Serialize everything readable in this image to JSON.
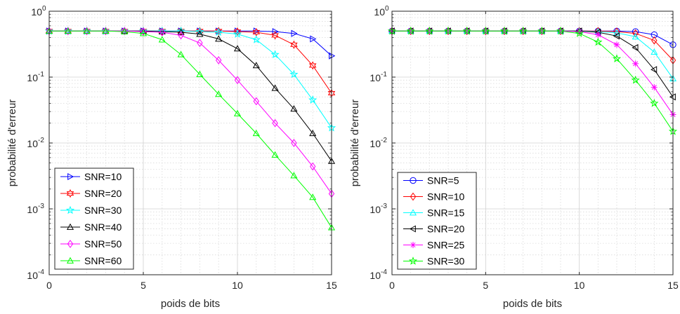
{
  "chart_data": [
    {
      "type": "line",
      "title": "",
      "xlabel": "poids de bits",
      "ylabel": "probabilité d'erreur",
      "xlim": [
        0,
        15
      ],
      "ylim": [
        0.0001,
        1
      ],
      "yscale": "log",
      "xticks": [
        "0",
        "5",
        "10",
        "15"
      ],
      "yticks": [
        {
          "base": "10",
          "exp": "0"
        },
        {
          "base": "10",
          "exp": "-1"
        },
        {
          "base": "10",
          "exp": "-2"
        },
        {
          "base": "10",
          "exp": "-3"
        },
        {
          "base": "10",
          "exp": "-4"
        }
      ],
      "grid": true,
      "legend_position": "bottom-left",
      "x": [
        0,
        1,
        2,
        3,
        4,
        5,
        6,
        7,
        8,
        9,
        10,
        11,
        12,
        13,
        14,
        15
      ],
      "series": [
        {
          "name": "SNR=10",
          "color": "#0000ff",
          "marker": "triangle-right",
          "values": [
            0.5,
            0.5,
            0.5,
            0.5,
            0.5,
            0.5,
            0.5,
            0.5,
            0.5,
            0.5,
            0.5,
            0.5,
            0.49,
            0.46,
            0.38,
            0.21
          ]
        },
        {
          "name": "SNR=20",
          "color": "#ff0000",
          "marker": "hexagram",
          "values": [
            0.5,
            0.5,
            0.5,
            0.5,
            0.5,
            0.5,
            0.5,
            0.5,
            0.5,
            0.5,
            0.49,
            0.48,
            0.43,
            0.31,
            0.15,
            0.057
          ]
        },
        {
          "name": "SNR=30",
          "color": "#00ffff",
          "marker": "pentagram",
          "values": [
            0.5,
            0.5,
            0.5,
            0.5,
            0.5,
            0.5,
            0.5,
            0.5,
            0.49,
            0.48,
            0.45,
            0.37,
            0.22,
            0.11,
            0.045,
            0.017
          ]
        },
        {
          "name": "SNR=40",
          "color": "#000000",
          "marker": "triangle-up",
          "values": [
            0.5,
            0.5,
            0.5,
            0.5,
            0.5,
            0.5,
            0.49,
            0.48,
            0.45,
            0.38,
            0.27,
            0.15,
            0.068,
            0.033,
            0.014,
            0.0053
          ]
        },
        {
          "name": "SNR=50",
          "color": "#ff00ff",
          "marker": "diamond",
          "values": [
            0.5,
            0.5,
            0.5,
            0.5,
            0.5,
            0.49,
            0.48,
            0.43,
            0.33,
            0.18,
            0.09,
            0.043,
            0.02,
            0.01,
            0.0044,
            0.0017
          ]
        },
        {
          "name": "SNR=60",
          "color": "#00ff00",
          "marker": "triangle-up",
          "values": [
            0.5,
            0.5,
            0.5,
            0.5,
            0.49,
            0.46,
            0.37,
            0.22,
            0.11,
            0.055,
            0.028,
            0.014,
            0.0066,
            0.0032,
            0.0015,
            0.00052
          ]
        }
      ]
    },
    {
      "type": "line",
      "title": "",
      "xlabel": "poids de bits",
      "ylabel": "probabilité d'erreur",
      "xlim": [
        0,
        15
      ],
      "ylim": [
        0.0001,
        1
      ],
      "yscale": "log",
      "xticks": [
        "0",
        "5",
        "10",
        "15"
      ],
      "yticks": [
        {
          "base": "10",
          "exp": "0"
        },
        {
          "base": "10",
          "exp": "-1"
        },
        {
          "base": "10",
          "exp": "-2"
        },
        {
          "base": "10",
          "exp": "-3"
        },
        {
          "base": "10",
          "exp": "-4"
        }
      ],
      "grid": true,
      "legend_position": "bottom-left",
      "x": [
        0,
        1,
        2,
        3,
        4,
        5,
        6,
        7,
        8,
        9,
        10,
        11,
        12,
        13,
        14,
        15
      ],
      "series": [
        {
          "name": "SNR=5",
          "color": "#0000ff",
          "marker": "circle",
          "values": [
            0.5,
            0.5,
            0.5,
            0.5,
            0.5,
            0.5,
            0.5,
            0.5,
            0.5,
            0.5,
            0.5,
            0.5,
            0.5,
            0.49,
            0.44,
            0.31
          ]
        },
        {
          "name": "SNR=10",
          "color": "#ff0000",
          "marker": "diamond",
          "values": [
            0.5,
            0.5,
            0.5,
            0.5,
            0.5,
            0.5,
            0.5,
            0.5,
            0.5,
            0.5,
            0.5,
            0.5,
            0.49,
            0.46,
            0.36,
            0.18
          ]
        },
        {
          "name": "SNR=15",
          "color": "#00ffff",
          "marker": "triangle-up",
          "values": [
            0.5,
            0.5,
            0.5,
            0.5,
            0.5,
            0.5,
            0.5,
            0.5,
            0.5,
            0.5,
            0.5,
            0.49,
            0.47,
            0.41,
            0.24,
            0.095
          ]
        },
        {
          "name": "SNR=20",
          "color": "#000000",
          "marker": "triangle-left",
          "values": [
            0.5,
            0.5,
            0.5,
            0.5,
            0.5,
            0.5,
            0.5,
            0.5,
            0.5,
            0.5,
            0.5,
            0.48,
            0.42,
            0.28,
            0.13,
            0.05
          ]
        },
        {
          "name": "SNR=25",
          "color": "#ff00ff",
          "marker": "asterisk",
          "values": [
            0.5,
            0.5,
            0.5,
            0.5,
            0.5,
            0.5,
            0.5,
            0.5,
            0.5,
            0.5,
            0.49,
            0.44,
            0.31,
            0.16,
            0.07,
            0.027
          ]
        },
        {
          "name": "SNR=30",
          "color": "#00ff00",
          "marker": "pentagram",
          "values": [
            0.5,
            0.5,
            0.5,
            0.5,
            0.5,
            0.5,
            0.5,
            0.5,
            0.5,
            0.5,
            0.46,
            0.34,
            0.19,
            0.09,
            0.04,
            0.015
          ]
        }
      ]
    }
  ]
}
